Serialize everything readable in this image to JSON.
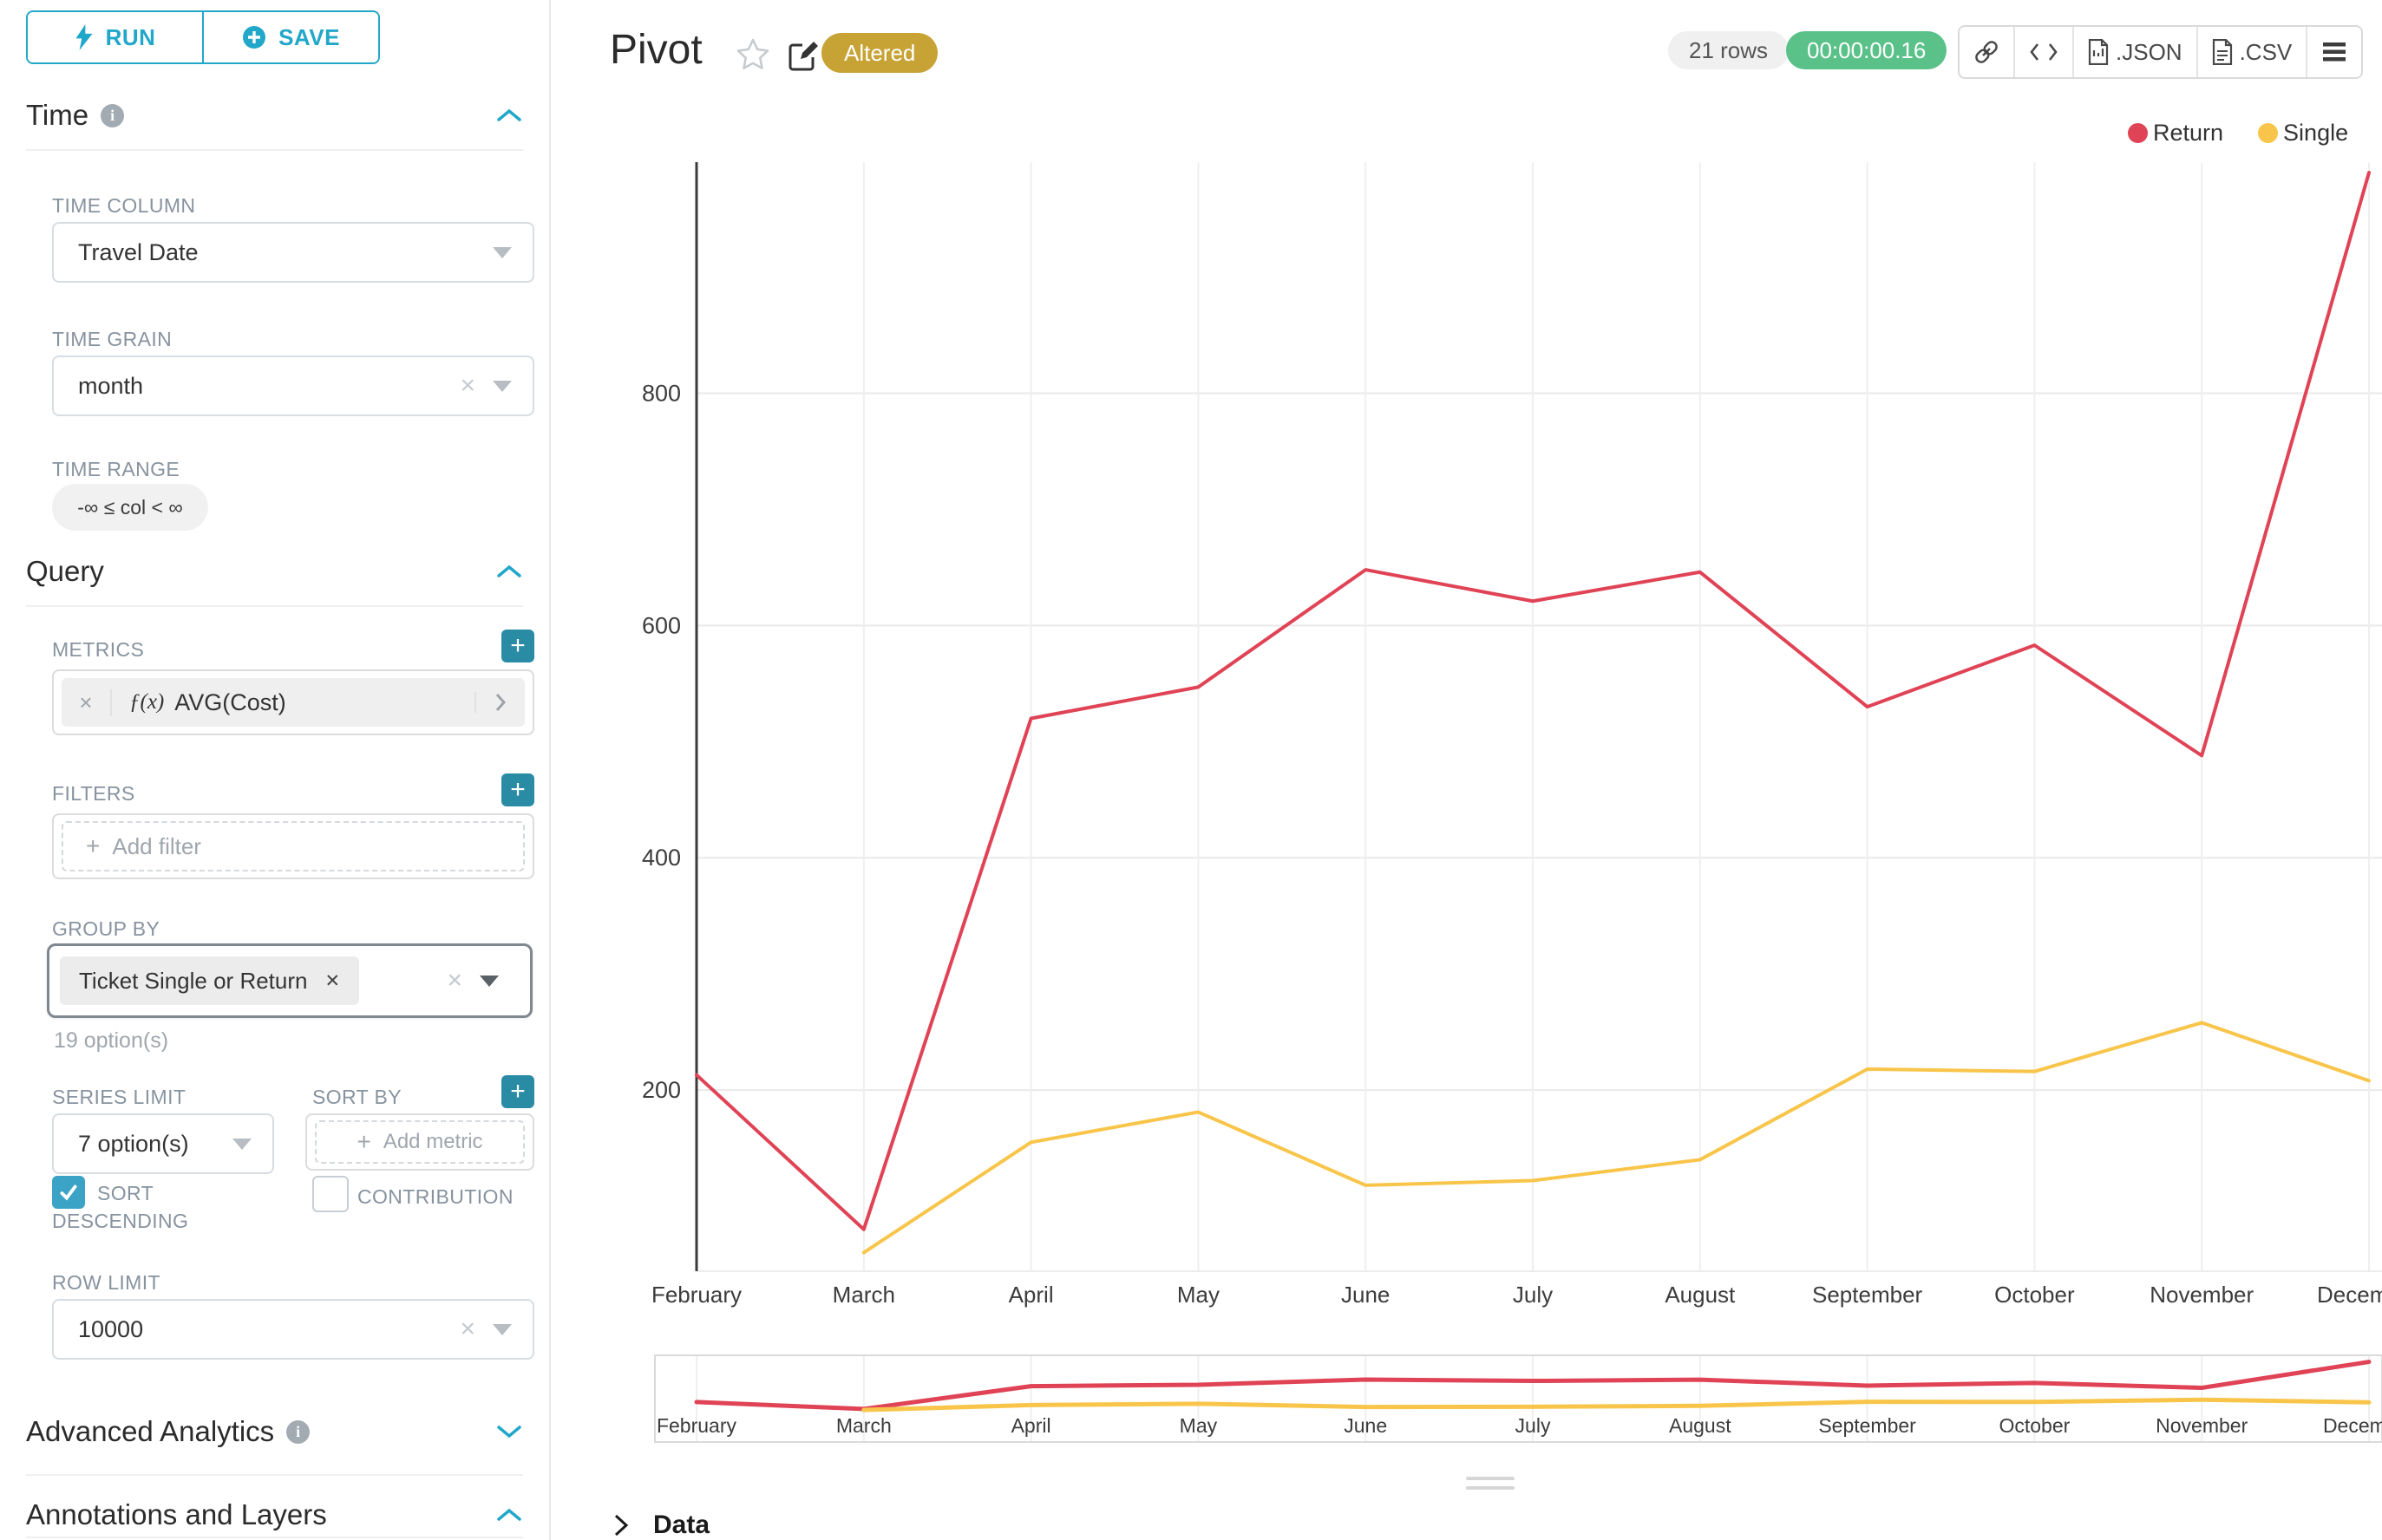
{
  "colors": {
    "accent": "#20A7C9",
    "accent_dark": "#2A8BA4",
    "gold": "#C7A235",
    "green": "#5AC189",
    "red": "#E04355",
    "yellow": "#F8C54A"
  },
  "sidebar": {
    "run_label": "RUN",
    "save_label": "SAVE",
    "time": {
      "title": "Time"
    },
    "time_column": {
      "label": "TIME COLUMN",
      "value": "Travel Date"
    },
    "time_grain": {
      "label": "TIME GRAIN",
      "value": "month"
    },
    "time_range": {
      "label": "TIME RANGE",
      "value": "-∞ ≤ col < ∞"
    },
    "query": {
      "title": "Query"
    },
    "metrics": {
      "label": "METRICS",
      "fx": "ƒ(x)",
      "value": "AVG(Cost)"
    },
    "filters": {
      "label": "FILTERS",
      "placeholder": "Add filter"
    },
    "group_by": {
      "label": "GROUP BY",
      "chip": "Ticket Single or Return",
      "hint": "19 option(s)"
    },
    "series_limit": {
      "label": "SERIES LIMIT",
      "value": "7 option(s)"
    },
    "sort_by": {
      "label": "SORT BY",
      "placeholder": "Add metric"
    },
    "sort_descending": {
      "label": "SORT DESCENDING",
      "checked": true
    },
    "contribution": {
      "label": "CONTRIBUTION",
      "checked": false
    },
    "row_limit": {
      "label": "ROW LIMIT",
      "value": "10000"
    },
    "advanced": {
      "title": "Advanced Analytics"
    },
    "annotations": {
      "title": "Annotations and Layers"
    }
  },
  "header": {
    "title": "Pivot",
    "badge": "Altered",
    "rows": "21 rows",
    "timer": "00:00:00.16",
    "json_label": ".JSON",
    "csv_label": ".CSV"
  },
  "data_panel": {
    "label": "Data"
  },
  "chart_data": {
    "type": "line",
    "title": "Pivot",
    "categories": [
      "February",
      "March",
      "April",
      "May",
      "June",
      "July",
      "August",
      "September",
      "October",
      "November",
      "December"
    ],
    "series": [
      {
        "name": "Return",
        "color": "#E04355",
        "values": [
          213,
          80,
          520,
          547,
          648,
          621,
          646,
          530,
          583,
          488,
          990
        ]
      },
      {
        "name": "Single",
        "color": "#F8C54A",
        "values": [
          null,
          60,
          155,
          181,
          118,
          122,
          140,
          218,
          216,
          258,
          208
        ]
      }
    ],
    "xlabel": "",
    "ylabel": "",
    "ylim": [
      44,
      999
    ],
    "yticks": [
      200,
      400,
      600,
      800
    ],
    "grid": true,
    "legend_position": "top-right",
    "range_selector": true
  }
}
